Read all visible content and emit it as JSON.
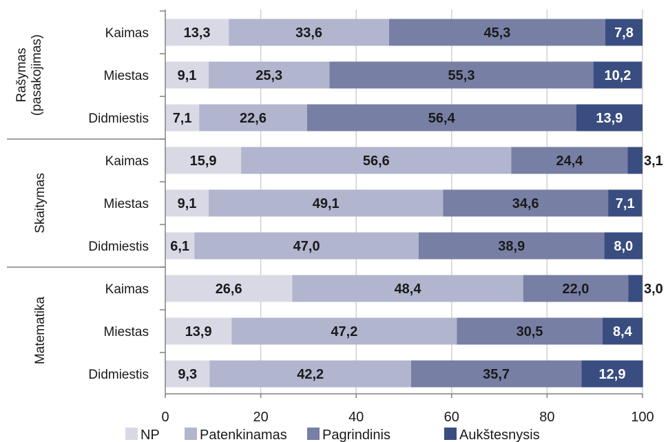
{
  "chart_data": {
    "type": "bar",
    "orientation": "horizontal",
    "stacked": true,
    "groups": [
      {
        "label": "Rašymas (pasakojimas)",
        "label_lines": [
          "Rašymas",
          "(pasakojimas)"
        ],
        "categories": [
          "Kaimas",
          "Miestas",
          "Didmiestis"
        ]
      },
      {
        "label": "Skaitymas",
        "label_lines": [
          "Skaitymas"
        ],
        "categories": [
          "Kaimas",
          "Miestas",
          "Didmiestis"
        ]
      },
      {
        "label": "Matematika",
        "label_lines": [
          "Matematika"
        ],
        "categories": [
          "Kaimas",
          "Miestas",
          "Didmiestis"
        ]
      }
    ],
    "series": [
      {
        "name": "NP",
        "color": "#d9d9e6",
        "text_color": "#1a1a1a",
        "values": [
          13.3,
          9.1,
          7.1,
          15.9,
          9.1,
          6.1,
          26.6,
          13.9,
          9.3
        ],
        "labels": [
          "13,3",
          "9,1",
          "7,1",
          "15,9",
          "9,1",
          "6,1",
          "26,6",
          "13,9",
          "9,3"
        ]
      },
      {
        "name": "Patenkinamas",
        "color": "#b1b5ce",
        "text_color": "#1a1a1a",
        "values": [
          33.6,
          25.3,
          22.6,
          56.6,
          49.1,
          47.0,
          48.4,
          47.2,
          42.2
        ],
        "labels": [
          "33,6",
          "25,3",
          "22,6",
          "56,6",
          "49,1",
          "47,0",
          "48,4",
          "47,2",
          "42,2"
        ]
      },
      {
        "name": "Pagrindinis",
        "color": "#787fa5",
        "text_color": "#1a1a1a",
        "values": [
          45.3,
          55.3,
          56.4,
          24.4,
          34.6,
          38.9,
          22.0,
          30.5,
          35.7
        ],
        "labels": [
          "45,3",
          "55,3",
          "56,4",
          "24,4",
          "34,6",
          "38,9",
          "22,0",
          "30,5",
          "35,7"
        ]
      },
      {
        "name": "Aukštesnysis",
        "color": "#3a4d80",
        "text_color": "#ffffff",
        "values": [
          7.8,
          10.2,
          13.9,
          3.1,
          7.1,
          8.0,
          3.0,
          8.4,
          12.9
        ],
        "labels": [
          "7,8",
          "10,2",
          "13,9",
          "3,1",
          "7,1",
          "8,0",
          "3,0",
          "8,4",
          "12,9"
        ]
      }
    ],
    "xlim": [
      0,
      100
    ],
    "x_ticks": [
      0,
      20,
      40,
      60,
      80,
      100
    ],
    "x_tick_labels": [
      "0",
      "20",
      "40",
      "60",
      "80",
      "100"
    ],
    "grid": true,
    "legend_position": "bottom"
  }
}
